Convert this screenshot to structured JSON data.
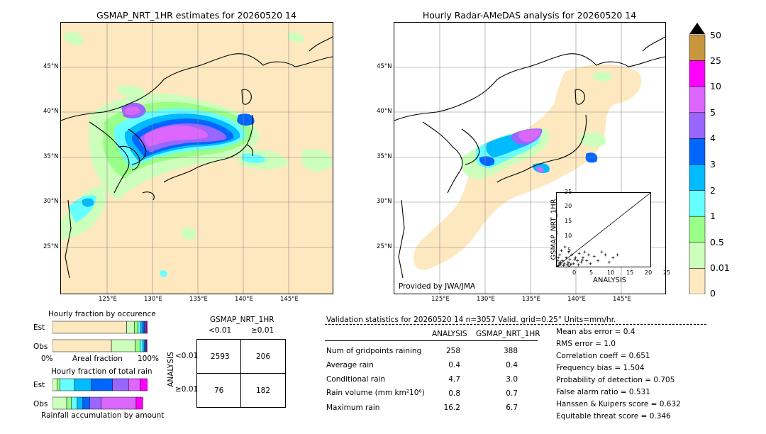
{
  "left_map": {
    "title": "GSMAP_NRT_1HR estimates for 20260520 14",
    "lat_ticks": [
      "45°N",
      "40°N",
      "35°N",
      "30°N",
      "25°N"
    ],
    "lon_ticks": [
      "125°E",
      "130°E",
      "135°E",
      "140°E",
      "145°E"
    ]
  },
  "right_map": {
    "title": "Hourly Radar-AMeDAS analysis for 20260520 14",
    "lat_ticks": [
      "45°N",
      "40°N",
      "35°N",
      "30°N",
      "25°N"
    ],
    "lon_ticks": [
      "125°E",
      "130°E",
      "135°E",
      "140°E",
      "145°E"
    ],
    "credit": "Provided by JWA/JMA"
  },
  "colorbar": {
    "labels": [
      "50",
      "25",
      "10",
      "5",
      "4",
      "3",
      "2",
      "1",
      "0.5",
      "0.01",
      "0"
    ],
    "colors": [
      "#c8963c",
      "#ff00ff",
      "#dd66ff",
      "#9966ff",
      "#0066ff",
      "#00bbff",
      "#66ffff",
      "#99ff88",
      "#ccffbb",
      "#fde8c0"
    ]
  },
  "chart_data": [
    {
      "type": "scatter",
      "title": "",
      "xlabel": "ANALYSIS",
      "ylabel": "GSMAP_NRT_1HR",
      "xlim": [
        0,
        25
      ],
      "ylim": [
        0,
        25
      ],
      "xticks": [
        "0",
        "5",
        "10",
        "15",
        "20",
        "25"
      ],
      "yticks": [
        "0",
        "5",
        "10",
        "15",
        "20",
        "25"
      ],
      "points": [
        [
          0.5,
          0.3
        ],
        [
          1,
          0.8
        ],
        [
          1.5,
          2
        ],
        [
          2,
          1
        ],
        [
          2.5,
          3
        ],
        [
          3,
          1.5
        ],
        [
          3.5,
          2.5
        ],
        [
          4,
          4
        ],
        [
          4.5,
          1
        ],
        [
          5,
          3
        ],
        [
          5.5,
          2
        ],
        [
          6,
          4.5
        ],
        [
          6.5,
          1.5
        ],
        [
          7,
          3
        ],
        [
          7.5,
          5
        ],
        [
          8,
          2
        ],
        [
          8.5,
          4
        ],
        [
          9,
          1
        ],
        [
          10,
          3.5
        ],
        [
          11,
          2
        ],
        [
          12,
          5
        ],
        [
          13,
          4
        ],
        [
          14,
          1.5
        ],
        [
          15,
          3
        ],
        [
          16.2,
          4
        ],
        [
          0.3,
          2
        ],
        [
          0.8,
          4
        ],
        [
          1.2,
          5.5
        ],
        [
          2.2,
          6.7
        ],
        [
          3.2,
          5
        ],
        [
          0.2,
          0.2
        ],
        [
          0.6,
          1.2
        ],
        [
          1.8,
          0.4
        ],
        [
          2.8,
          0.6
        ],
        [
          3.8,
          0.8
        ],
        [
          4.8,
          2.4
        ],
        [
          5.8,
          0.6
        ],
        [
          6.8,
          2.2
        ],
        [
          0.4,
          3
        ],
        [
          1,
          1.5
        ]
      ]
    },
    {
      "type": "bar",
      "title": "Hourly fraction by occurence",
      "categories": [
        "Est",
        "Obs"
      ],
      "xlabel": "Areal fraction",
      "xticks": [
        "0%",
        "100%"
      ],
      "series_colors": [
        "#fde8c0",
        "#ccffbb",
        "#99ff88",
        "#66ffff",
        "#00bbff",
        "#0066ff",
        "#9966ff",
        "#dd66ff",
        "#ff00ff",
        "#c8963c"
      ],
      "fractions": [
        [
          0.78,
          0.08,
          0.04,
          0.03,
          0.02,
          0.02,
          0.01,
          0.01,
          0.01,
          0.0
        ],
        [
          0.62,
          0.25,
          0.05,
          0.03,
          0.02,
          0.01,
          0.01,
          0.01,
          0.0,
          0.0
        ]
      ]
    },
    {
      "type": "bar",
      "title": "Hourly fraction of total rain",
      "categories": [
        "Est",
        "Obs"
      ],
      "xlabel": "Rainfall accumulation by amount",
      "series_colors": [
        "#fde8c0",
        "#ccffbb",
        "#99ff88",
        "#66ffff",
        "#00bbff",
        "#0066ff",
        "#9966ff",
        "#dd66ff",
        "#ff00ff",
        "#c8963c"
      ],
      "fractions": [
        [
          0.0,
          0.05,
          0.03,
          0.15,
          0.18,
          0.22,
          0.17,
          0.12,
          0.08,
          0.0
        ],
        [
          0.0,
          0.15,
          0.05,
          0.06,
          0.06,
          0.07,
          0.12,
          0.37,
          0.07,
          0.0
        ]
      ]
    }
  ],
  "contingency": {
    "header": "GSMAP_NRT_1HR",
    "col_labels": [
      "<0.01",
      "≥0.01"
    ],
    "row_axis": "ANALYSIS",
    "row_labels": [
      "<0.01",
      "≥0.01"
    ],
    "cells": [
      [
        "2593",
        "206"
      ],
      [
        "76",
        "182"
      ]
    ]
  },
  "validation": {
    "header": "Validation statistics for 20260520 14  n=3057 Valid. grid=0.25° Units=mm/hr.",
    "col_analysis": "ANALYSIS",
    "col_gsmap": "GSMAP_NRT_1HR",
    "rows": [
      {
        "label": "Num of gridpoints raining",
        "analysis": "258",
        "gsmap": "388"
      },
      {
        "label": "Average rain",
        "analysis": "0.4",
        "gsmap": "0.4"
      },
      {
        "label": "Conditional rain",
        "analysis": "4.7",
        "gsmap": "3.0"
      },
      {
        "label": "Rain volume (mm km²10⁶)",
        "analysis": "0.8",
        "gsmap": "0.7"
      },
      {
        "label": "Maximum rain",
        "analysis": "16.2",
        "gsmap": "6.7"
      }
    ],
    "scores": [
      "Mean abs error =    0.4",
      "RMS error =    1.0",
      "Correlation coeff =  0.651",
      "Frequency bias =  1.504",
      "Probability of detection =  0.705",
      "False alarm ratio =  0.531",
      "Hanssen & Kuipers score =  0.632",
      "Equitable threat score =  0.346"
    ]
  }
}
